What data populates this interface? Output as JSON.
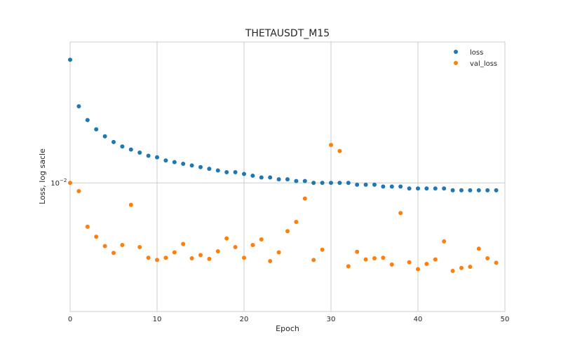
{
  "chart_data": {
    "type": "scatter",
    "title": "THETAUSDT_M15",
    "xlabel": "Epoch",
    "ylabel": "Loss, log sacle",
    "xlim": [
      0,
      50
    ],
    "ylim": [
      0.00495,
      0.0216
    ],
    "yscale": "log",
    "xticks": [
      0,
      10,
      20,
      30,
      40,
      50
    ],
    "xtick_labels": [
      "0",
      "10",
      "20",
      "30",
      "40",
      "50"
    ],
    "yticks": [
      0.01
    ],
    "ytick_labels": [
      "10",
      "−2"
    ],
    "grid": true,
    "legend_position": "top-right",
    "colors": {
      "loss": "#1f77b4",
      "val_loss": "#ff7f0e",
      "grid": "#cccccc",
      "frame": "#cccccc"
    },
    "series": [
      {
        "name": "loss",
        "x": [
          0,
          1,
          2,
          3,
          4,
          5,
          6,
          7,
          8,
          9,
          10,
          11,
          12,
          13,
          14,
          15,
          16,
          17,
          18,
          19,
          20,
          21,
          22,
          23,
          24,
          25,
          26,
          27,
          28,
          29,
          30,
          31,
          32,
          33,
          34,
          35,
          36,
          37,
          38,
          39,
          40,
          41,
          42,
          43,
          44,
          45,
          46,
          47,
          48,
          49
        ],
        "y": [
          0.0196,
          0.0152,
          0.0141,
          0.0134,
          0.0129,
          0.0125,
          0.0122,
          0.012,
          0.0118,
          0.0116,
          0.0115,
          0.0113,
          0.0112,
          0.0111,
          0.011,
          0.0109,
          0.0108,
          0.0107,
          0.0106,
          0.0106,
          0.0105,
          0.0104,
          0.0103,
          0.0103,
          0.0102,
          0.0102,
          0.0101,
          0.0101,
          0.01,
          0.01,
          0.01,
          0.01,
          0.01,
          0.0099,
          0.0099,
          0.0099,
          0.0098,
          0.0098,
          0.0098,
          0.0097,
          0.0097,
          0.0097,
          0.0097,
          0.0097,
          0.0096,
          0.0096,
          0.0096,
          0.0096,
          0.0096,
          0.0096
        ]
      },
      {
        "name": "val_loss",
        "x": [
          0,
          1,
          2,
          3,
          4,
          5,
          6,
          7,
          8,
          9,
          10,
          11,
          12,
          13,
          14,
          15,
          16,
          17,
          18,
          19,
          20,
          21,
          22,
          23,
          24,
          25,
          26,
          27,
          28,
          29,
          30,
          31,
          32,
          33,
          34,
          35,
          36,
          37,
          38,
          39,
          40,
          41,
          42,
          43,
          44,
          45,
          46,
          47,
          48,
          49
        ],
        "y": [
          0.01,
          0.00956,
          0.00787,
          0.00745,
          0.00708,
          0.00682,
          0.00712,
          0.00887,
          0.00704,
          0.00664,
          0.00656,
          0.00664,
          0.00684,
          0.00716,
          0.00662,
          0.00674,
          0.0066,
          0.00688,
          0.00738,
          0.00704,
          0.00664,
          0.00712,
          0.00734,
          0.00652,
          0.00684,
          0.00768,
          0.00808,
          0.00918,
          0.00656,
          0.00694,
          0.0123,
          0.0119,
          0.00634,
          0.00686,
          0.00658,
          0.00662,
          0.00664,
          0.0064,
          0.00848,
          0.00648,
          0.00624,
          0.00642,
          0.00658,
          0.00726,
          0.00618,
          0.00628,
          0.00632,
          0.00698,
          0.00662,
          0.00646
        ]
      }
    ]
  }
}
